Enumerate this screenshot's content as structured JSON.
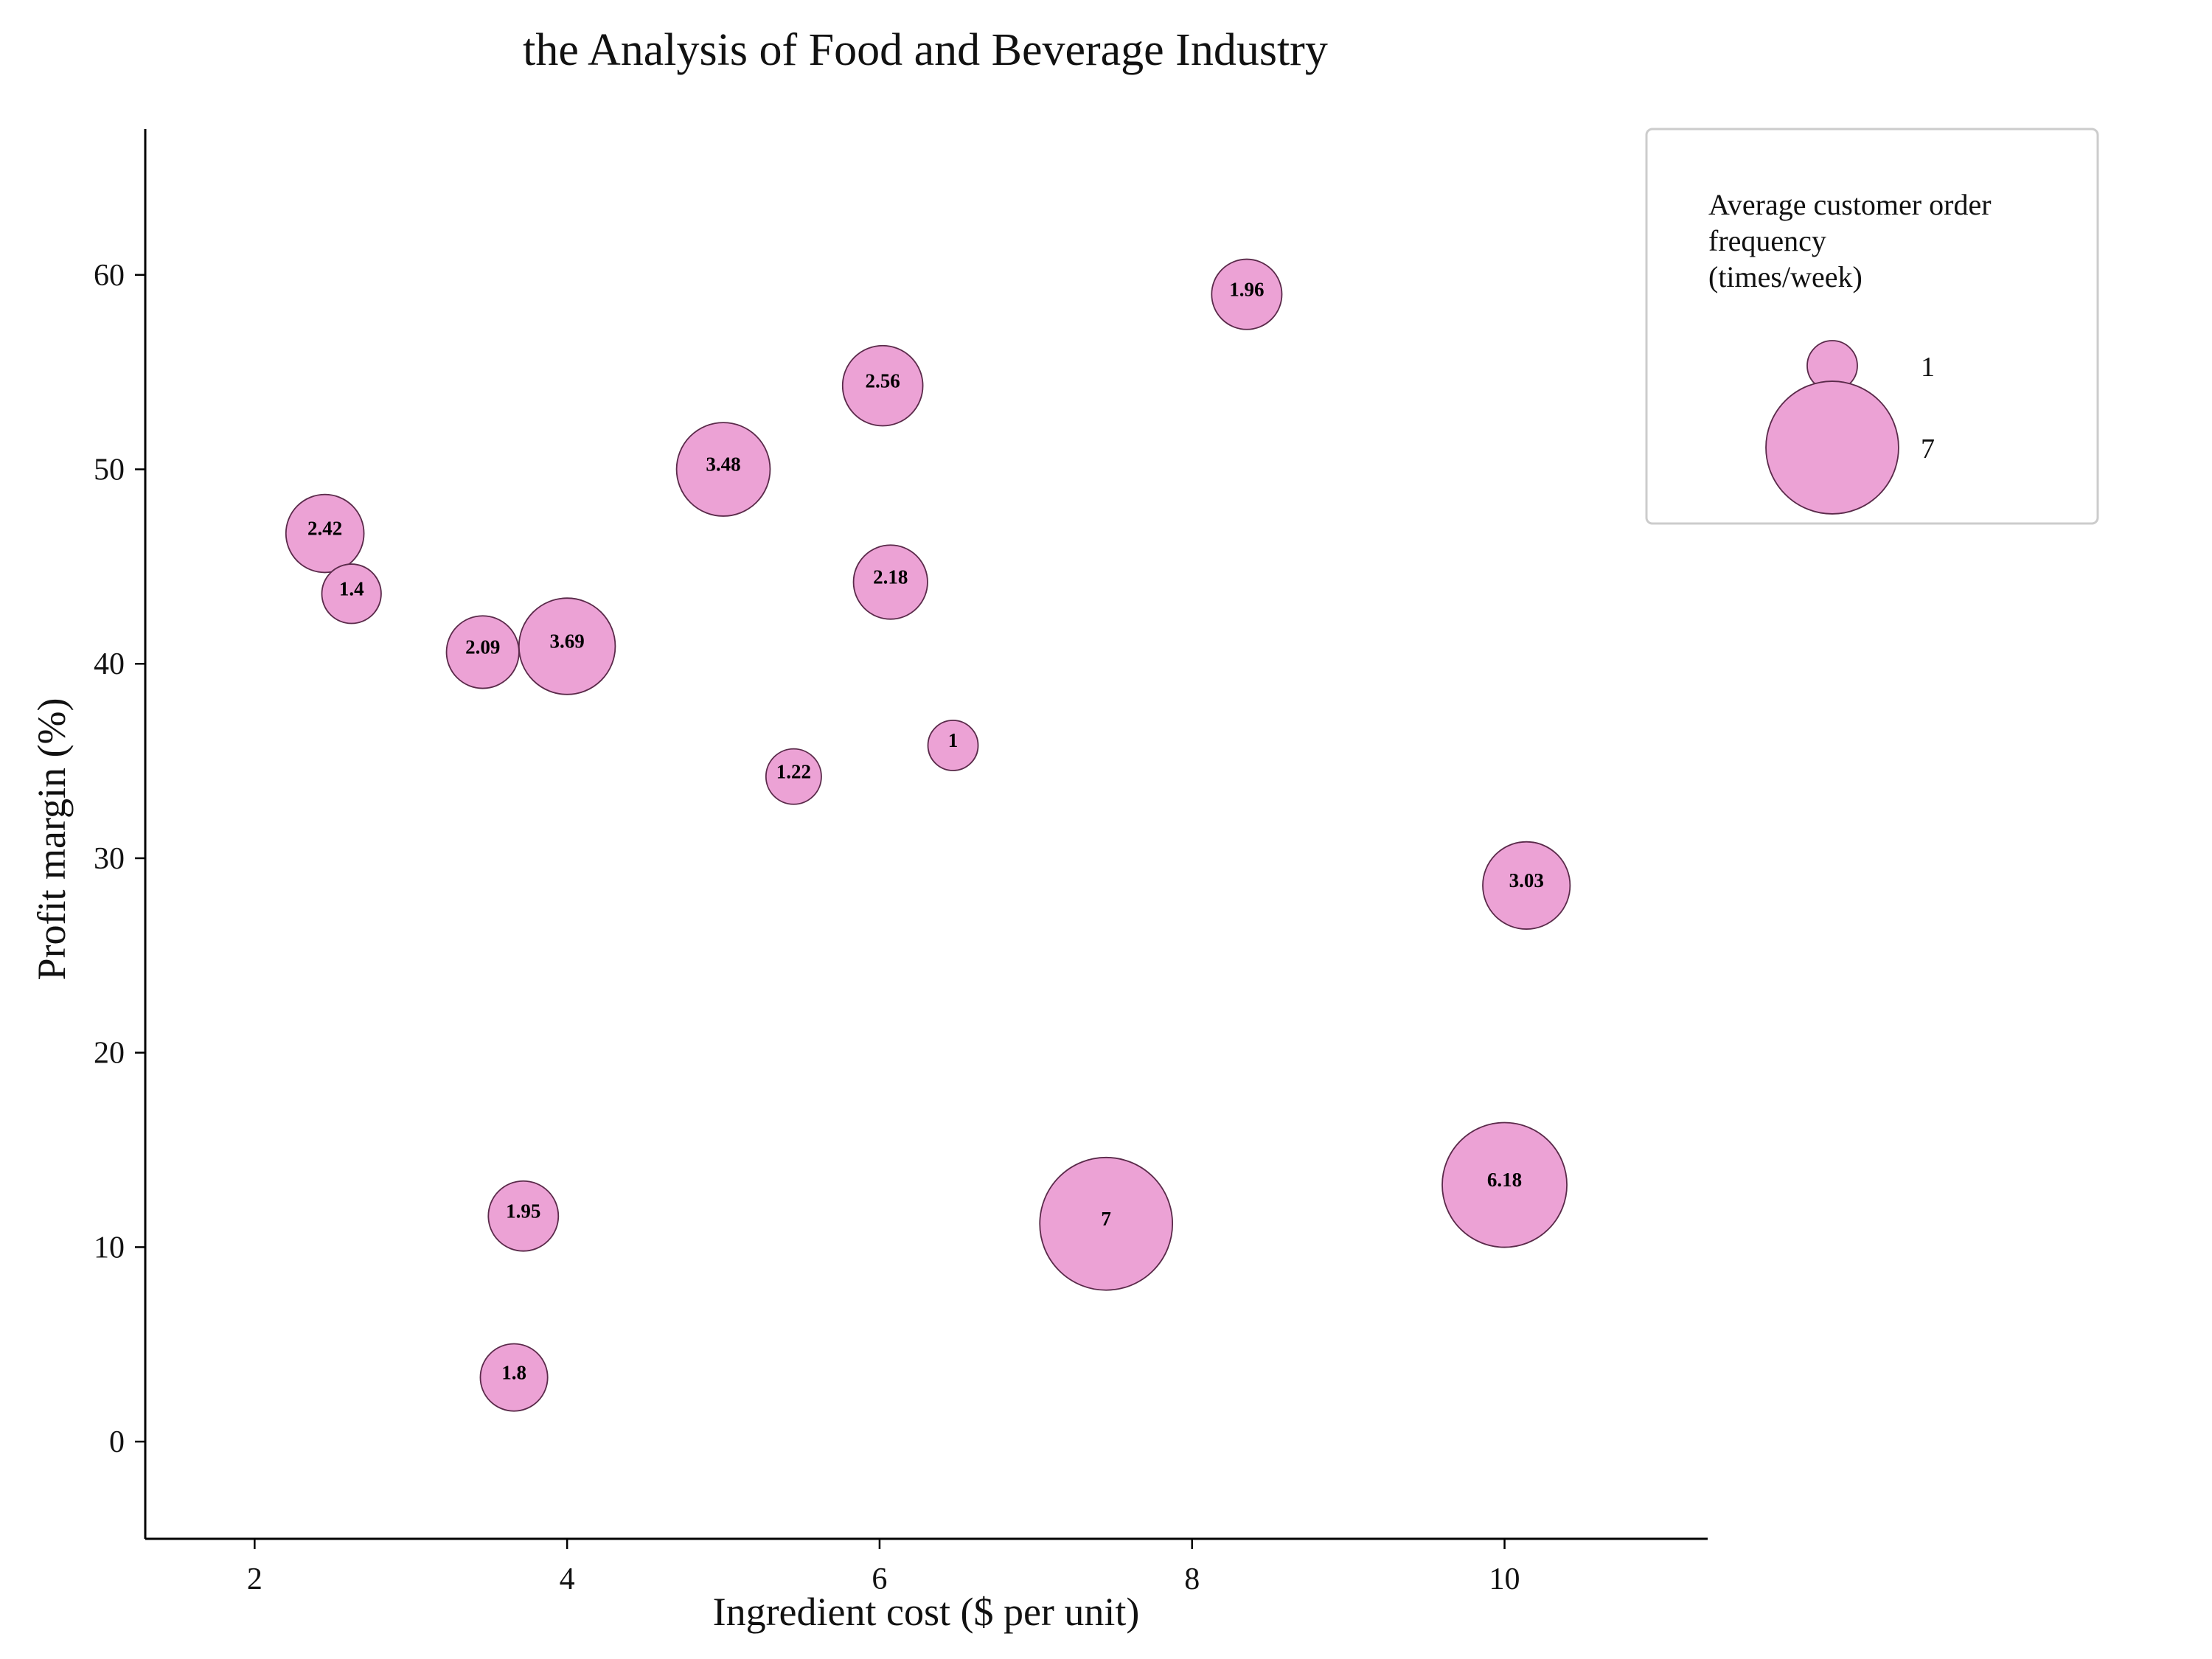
{
  "chart_data": {
    "type": "scatter",
    "title": "the Analysis of Food and Beverage Industry",
    "xlabel": "Ingredient cost ($ per unit)",
    "ylabel": "Profit margin (%)",
    "xlim": [
      1.3,
      11.3
    ],
    "ylim": [
      -5,
      67.5
    ],
    "xticks": [
      2,
      4,
      6,
      8,
      10
    ],
    "yticks": [
      0,
      10,
      20,
      30,
      40,
      50,
      60
    ],
    "grid": false,
    "bubble_color": "#eca2d5",
    "bubble_edge_color": "#5a2a4a",
    "points": [
      {
        "x": 2.45,
        "y": 46.7,
        "size": 2.42,
        "label": "2.42"
      },
      {
        "x": 2.62,
        "y": 43.6,
        "size": 1.4,
        "label": "1.4"
      },
      {
        "x": 3.46,
        "y": 40.6,
        "size": 2.09,
        "label": "2.09"
      },
      {
        "x": 4.0,
        "y": 40.9,
        "size": 3.69,
        "label": "3.69"
      },
      {
        "x": 5.0,
        "y": 50.0,
        "size": 3.48,
        "label": "3.48"
      },
      {
        "x": 5.45,
        "y": 34.2,
        "size": 1.22,
        "label": "1.22"
      },
      {
        "x": 6.02,
        "y": 54.3,
        "size": 2.56,
        "label": "2.56"
      },
      {
        "x": 6.07,
        "y": 44.2,
        "size": 2.18,
        "label": "2.18"
      },
      {
        "x": 6.47,
        "y": 35.8,
        "size": 1.0,
        "label": "1"
      },
      {
        "x": 8.35,
        "y": 59.0,
        "size": 1.96,
        "label": "1.96"
      },
      {
        "x": 10.14,
        "y": 28.6,
        "size": 3.03,
        "label": "3.03"
      },
      {
        "x": 3.72,
        "y": 11.6,
        "size": 1.95,
        "label": "1.95"
      },
      {
        "x": 3.66,
        "y": 3.3,
        "size": 1.8,
        "label": "1.8"
      },
      {
        "x": 7.45,
        "y": 11.2,
        "size": 7.0,
        "label": "7"
      },
      {
        "x": 10.0,
        "y": 13.2,
        "size": 6.18,
        "label": "6.18"
      }
    ],
    "legend": {
      "title_lines": [
        "Average customer order",
        "frequency",
        "(times/week)"
      ],
      "placement": "top-right, outside plot",
      "entries": [
        {
          "size": 1,
          "label": "1"
        },
        {
          "size": 7,
          "label": "7"
        }
      ]
    }
  }
}
